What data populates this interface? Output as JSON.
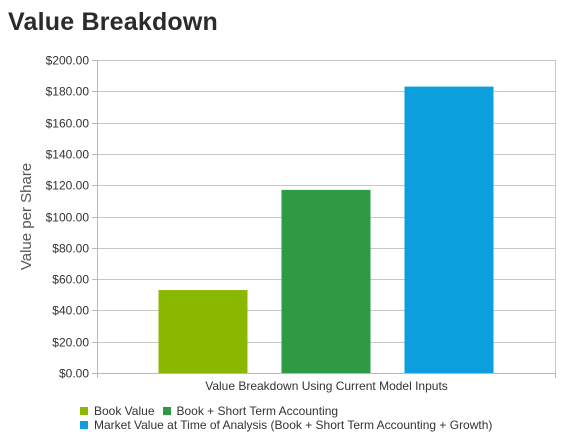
{
  "title": "Value Breakdown",
  "chart_data": {
    "type": "bar",
    "title": "Value Breakdown",
    "xlabel": "Value Breakdown Using Current Model Inputs",
    "ylabel": "Value per Share",
    "ylim": [
      0,
      200
    ],
    "yticks": [
      "$0.00",
      "$20.00",
      "$40.00",
      "$60.00",
      "$80.00",
      "$100.00",
      "$120.00",
      "$140.00",
      "$160.00",
      "$180.00",
      "$200.00"
    ],
    "grid": true,
    "legend_position": "bottom",
    "series": [
      {
        "name": "Book Value",
        "value": 53,
        "color": "#8ab800"
      },
      {
        "name": "Book + Short Term Accounting",
        "value": 117,
        "color": "#2f9a44"
      },
      {
        "name": "Market Value at Time of Analysis (Book + Short Term Accounting + Growth)",
        "value": 183,
        "color": "#0b9fde"
      }
    ]
  }
}
